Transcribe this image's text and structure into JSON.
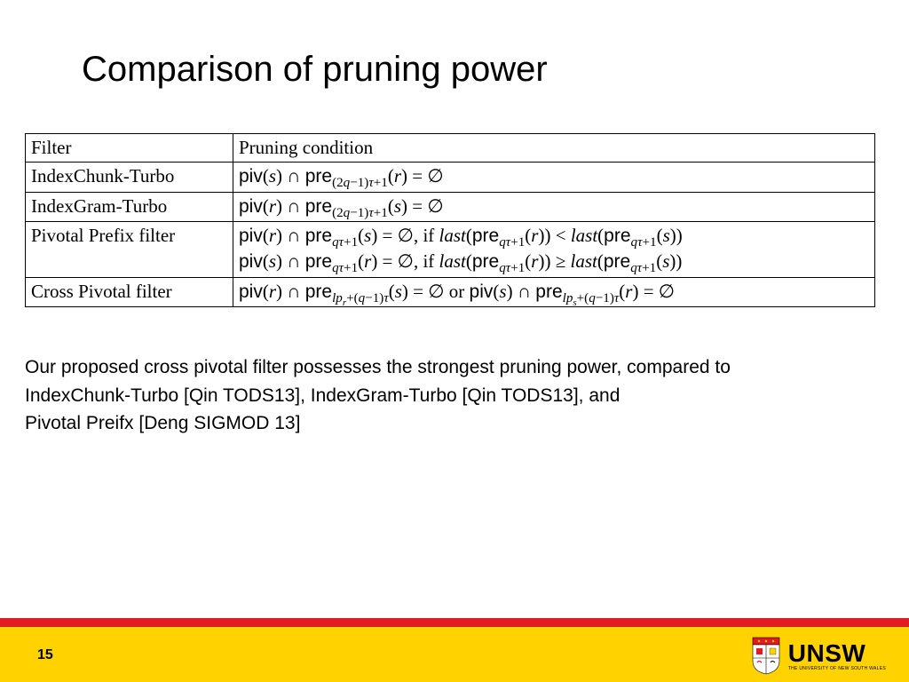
{
  "title": "Comparison of pruning power",
  "table": {
    "header": {
      "c1": "Filter",
      "c2": "Pruning condition"
    },
    "rows": [
      {
        "c1": "IndexChunk-Turbo",
        "c2": "<span class='sans'>piv</span>(<span class='ital'>s</span>) ∩ <span class='sans'>pre</span><sub>(2<span class='ital'>q</span>−1)<span class='ital'>τ</span>+1</sub>(<span class='ital'>r</span>) = ∅"
      },
      {
        "c1": "IndexGram-Turbo",
        "c2": "<span class='sans'>piv</span>(<span class='ital'>r</span>) ∩ <span class='sans'>pre</span><sub>(2<span class='ital'>q</span>−1)<span class='ital'>τ</span>+1</sub>(<span class='ital'>s</span>) = ∅"
      },
      {
        "c1": "Pivotal Prefix filter",
        "c2": "<span class='sans'>piv</span>(<span class='ital'>r</span>) ∩ <span class='sans'>pre</span><sub><span class='ital'>qτ</span>+1</sub>(<span class='ital'>s</span>) = ∅, if <span class='ital'>last</span>(<span class='sans'>pre</span><sub><span class='ital'>qτ</span>+1</sub>(<span class='ital'>r</span>)) &lt; <span class='ital'>last</span>(<span class='sans'>pre</span><sub><span class='ital'>qτ</span>+1</sub>(<span class='ital'>s</span>))<br><span class='sans'>piv</span>(<span class='ital'>s</span>) ∩ <span class='sans'>pre</span><sub><span class='ital'>qτ</span>+1</sub>(<span class='ital'>r</span>) = ∅, if <span class='ital'>last</span>(<span class='sans'>pre</span><sub><span class='ital'>qτ</span>+1</sub>(<span class='ital'>r</span>)) ≥ <span class='ital'>last</span>(<span class='sans'>pre</span><sub><span class='ital'>qτ</span>+1</sub>(<span class='ital'>s</span>))"
      },
      {
        "c1": "Cross Pivotal filter",
        "c2": "<span class='sans'>piv</span>(<span class='ital'>r</span>) ∩ <span class='sans'>pre</span><sub><span class='ital'>lp<sub>r</sub></span>+(<span class='ital'>q</span>−1)<span class='ital'>τ</span></sub>(<span class='ital'>s</span>) = ∅ or <span class='sans'>piv</span>(<span class='ital'>s</span>) ∩ <span class='sans'>pre</span><sub><span class='ital'>lp<sub>s</sub></span>+(<span class='ital'>q</span>−1)<span class='ital'>τ</span></sub>(<span class='ital'>r</span>) = ∅"
      }
    ]
  },
  "body": {
    "line1": "Our proposed cross pivotal filter possesses the strongest pruning power, compared to",
    "line2": "IndexChunk-Turbo [Qin TODS13], IndexGram-Turbo [Qin TODS13], and",
    "line3": "Pivotal Preifx [Deng SIGMOD 13]"
  },
  "footer": {
    "page_number": "15",
    "logo_word": "UNSW",
    "logo_sub": "THE UNIVERSITY OF NEW SOUTH WALES",
    "red_color": "#e21b22",
    "yellow_color": "#ffd200"
  },
  "styling": {
    "background_color": "#ffffff",
    "title_fontsize": 40,
    "table_fontsize": 21,
    "body_fontsize": 21,
    "border_color": "#000000",
    "text_color": "#000000"
  }
}
